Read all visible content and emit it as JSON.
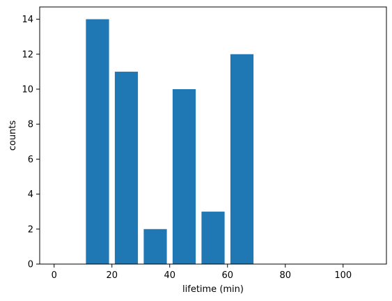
{
  "chart_data": {
    "type": "bar",
    "title": "",
    "xlabel": "lifetime (min)",
    "ylabel": "counts",
    "bar_color": "#1f77b4",
    "bar_width": 8,
    "xlim": [
      -5,
      115
    ],
    "ylim": [
      0,
      14.7
    ],
    "xticks": [
      0,
      20,
      40,
      60,
      80,
      100
    ],
    "yticks": [
      0,
      2,
      4,
      6,
      8,
      10,
      12,
      14
    ],
    "x": [
      5,
      15,
      25,
      35,
      45,
      55,
      65,
      75,
      85,
      95,
      105
    ],
    "values": [
      0,
      14,
      11,
      2,
      10,
      3,
      12,
      0,
      0,
      0,
      0
    ],
    "grid": false,
    "legend": null
  }
}
